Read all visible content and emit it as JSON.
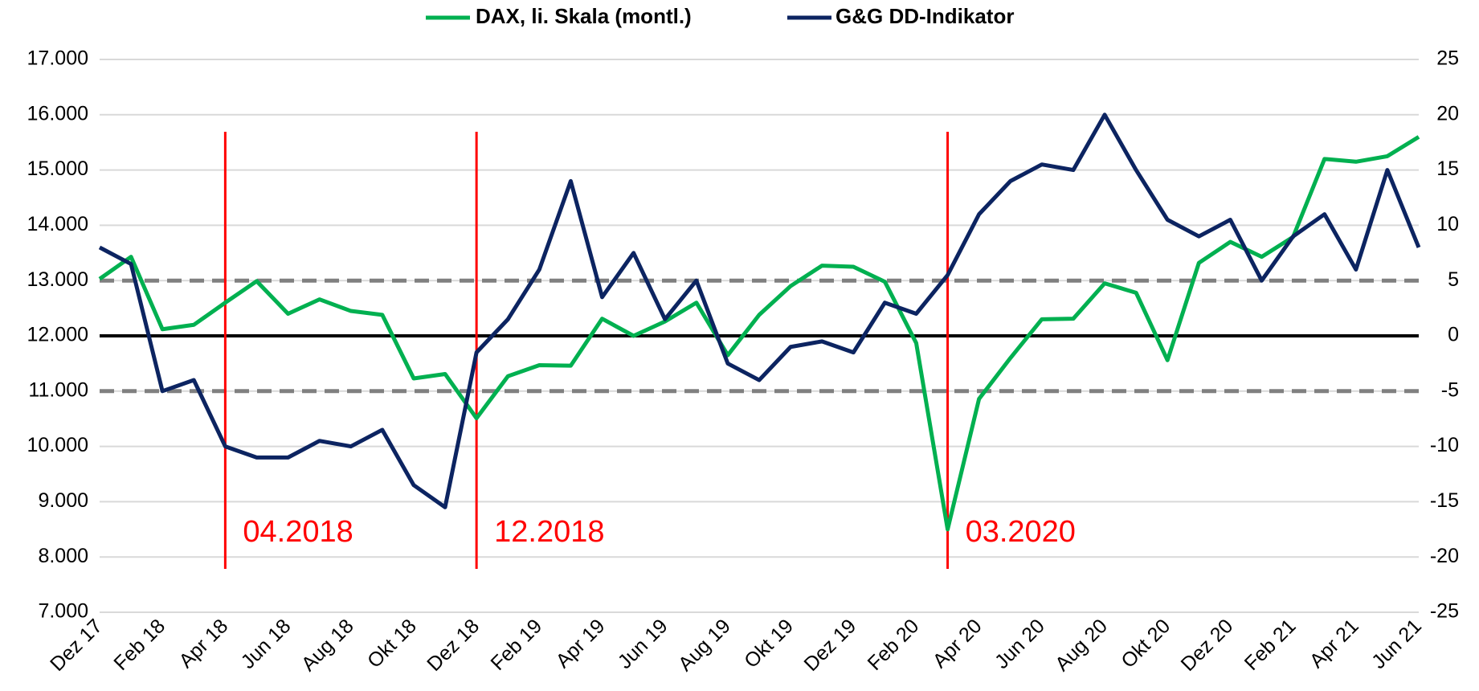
{
  "chart_data": {
    "type": "line",
    "categories": [
      "Dez 17",
      null,
      "Feb 18",
      null,
      "Apr 18",
      null,
      "Jun 18",
      null,
      "Aug 18",
      null,
      "Okt 18",
      null,
      "Dez 18",
      null,
      "Feb 19",
      null,
      "Apr 19",
      null,
      "Jun 19",
      null,
      "Aug 19",
      null,
      "Okt 19",
      null,
      "Dez 19",
      null,
      "Feb 20",
      null,
      "Apr 20",
      null,
      "Jun 20",
      null,
      "Aug 20",
      null,
      "Okt 20",
      null,
      "Dez 20",
      null,
      "Feb 21",
      null,
      "Apr 21",
      null,
      "Jun 21"
    ],
    "series": [
      {
        "name": "DAX, li. Skala (montl.)",
        "color": "#00b050",
        "axis": "y",
        "values": [
          13030,
          13430,
          12120,
          12200,
          12600,
          12990,
          12400,
          12660,
          12450,
          12380,
          11230,
          11310,
          10510,
          11270,
          11470,
          11460,
          12310,
          12000,
          12260,
          12600,
          11650,
          12380,
          12900,
          13270,
          13250,
          12980,
          11870,
          8500,
          10860,
          11600,
          12300,
          12310,
          12950,
          12780,
          11560,
          13320,
          13700,
          13430,
          13790,
          15200,
          15150,
          15250,
          15600
        ]
      },
      {
        "name": "G&G DD-Indikator",
        "color": "#0c2461",
        "axis": "y2",
        "values": [
          8,
          6.5,
          -5,
          -4,
          -10,
          -11,
          -11,
          -9.5,
          -10,
          -8.5,
          -13.5,
          -15.5,
          -1.5,
          1.5,
          6,
          14,
          3.5,
          7.5,
          1.5,
          5,
          -2.5,
          -4,
          -1,
          -0.5,
          -1.5,
          3,
          2,
          5.5,
          11,
          14,
          15.5,
          15,
          20,
          15,
          10.5,
          9,
          10.5,
          5,
          9,
          11,
          6,
          15,
          8
        ]
      }
    ],
    "ylim": [
      7000,
      17000
    ],
    "yticks": [
      {
        "value": 7000,
        "label": "7.000"
      },
      {
        "value": 8000,
        "label": "8.000"
      },
      {
        "value": 9000,
        "label": "9.000"
      },
      {
        "value": 10000,
        "label": "10.000"
      },
      {
        "value": 11000,
        "label": "11.000"
      },
      {
        "value": 12000,
        "label": "12.000"
      },
      {
        "value": 13000,
        "label": "13.000"
      },
      {
        "value": 14000,
        "label": "14.000"
      },
      {
        "value": 15000,
        "label": "15.000"
      },
      {
        "value": 16000,
        "label": "16.000"
      },
      {
        "value": 17000,
        "label": "17.000"
      }
    ],
    "y2lim": [
      -25,
      25
    ],
    "y2ticks": [
      -25,
      -20,
      -15,
      -10,
      -5,
      0,
      5,
      10,
      15,
      20,
      25
    ],
    "grid": true,
    "legend": "top",
    "reference_lines": [
      {
        "axis": "y2",
        "value": 5,
        "style": "dashed",
        "color": "#808080"
      },
      {
        "axis": "y2",
        "value": -5,
        "style": "dashed",
        "color": "#808080"
      },
      {
        "axis": "y2",
        "value": 0,
        "style": "solid",
        "color": "#000000"
      }
    ],
    "annotations": [
      {
        "text": "04.2018",
        "at": 4,
        "color": "#ff0000"
      },
      {
        "text": "12.2018",
        "at": 12,
        "color": "#ff0000"
      },
      {
        "text": "03.2020",
        "at": 27,
        "color": "#ff0000"
      }
    ]
  }
}
